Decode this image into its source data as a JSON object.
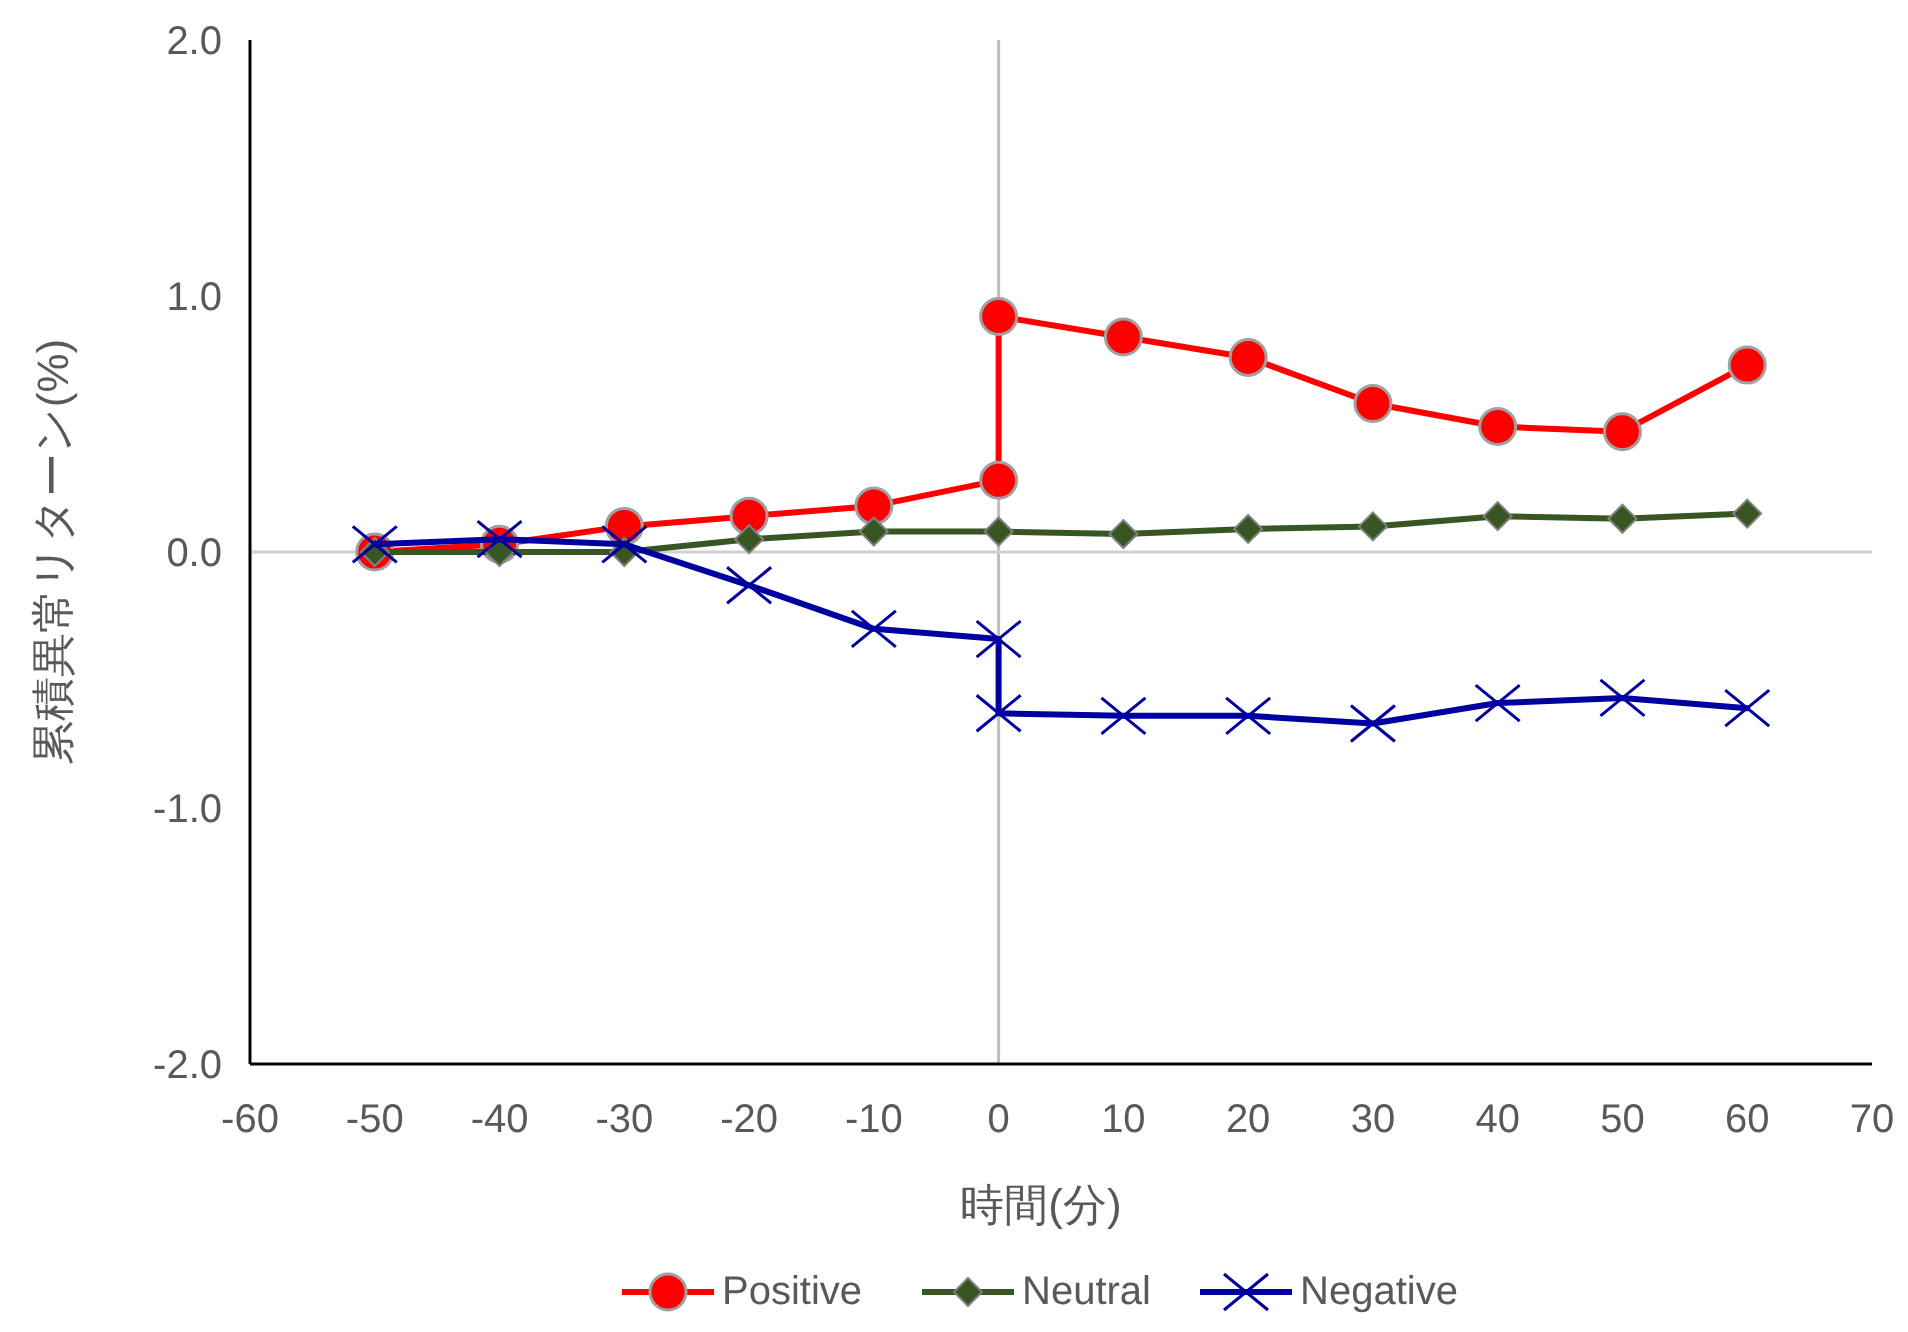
{
  "chart_data": {
    "type": "line",
    "xlabel": "時間(分)",
    "ylabel": "累積異常リターン(%)",
    "xlim": [
      -60,
      70
    ],
    "xticks": [
      -60,
      -50,
      -40,
      -30,
      -20,
      -10,
      0,
      10,
      20,
      30,
      40,
      50,
      60,
      70
    ],
    "ylim": [
      -2,
      2
    ],
    "yticks": [
      {
        "value": 2,
        "label": "2.0"
      },
      {
        "value": 1,
        "label": "1.0"
      },
      {
        "value": 0,
        "label": "0.0"
      },
      {
        "value": -1,
        "label": "-1.0"
      },
      {
        "value": -2,
        "label": "-2.0"
      }
    ],
    "grid": false,
    "legend": "bottom",
    "ref_lines": [
      {
        "axis": "x",
        "value": 0,
        "color": "#bfbfbf"
      },
      {
        "axis": "y",
        "value": 0,
        "color": "#d0d0d0"
      }
    ],
    "series": [
      {
        "name": "Positive",
        "color": "#ff0000",
        "marker": "circle",
        "x": [
          -50,
          -40,
          -30,
          -20,
          -10,
          0,
          0,
          10,
          20,
          30,
          40,
          50,
          60
        ],
        "values": [
          0.0,
          0.03,
          0.1,
          0.14,
          0.18,
          0.28,
          0.92,
          0.84,
          0.76,
          0.58,
          0.49,
          0.47,
          0.73
        ]
      },
      {
        "name": "Neutral",
        "color": "#375623",
        "marker": "diamond",
        "x": [
          -50,
          -40,
          -30,
          -20,
          -10,
          0,
          10,
          20,
          30,
          40,
          50,
          60
        ],
        "values": [
          0.0,
          0.0,
          0.0,
          0.05,
          0.08,
          0.08,
          0.07,
          0.09,
          0.1,
          0.14,
          0.13,
          0.15
        ]
      },
      {
        "name": "Negative",
        "color": "#0000a0",
        "marker": "cross",
        "x": [
          -50,
          -40,
          -30,
          -20,
          -10,
          0,
          0,
          10,
          20,
          30,
          40,
          50,
          60
        ],
        "values": [
          0.03,
          0.05,
          0.03,
          -0.13,
          -0.3,
          -0.34,
          -0.63,
          -0.64,
          -0.64,
          -0.67,
          -0.59,
          -0.57,
          -0.61
        ]
      }
    ]
  }
}
